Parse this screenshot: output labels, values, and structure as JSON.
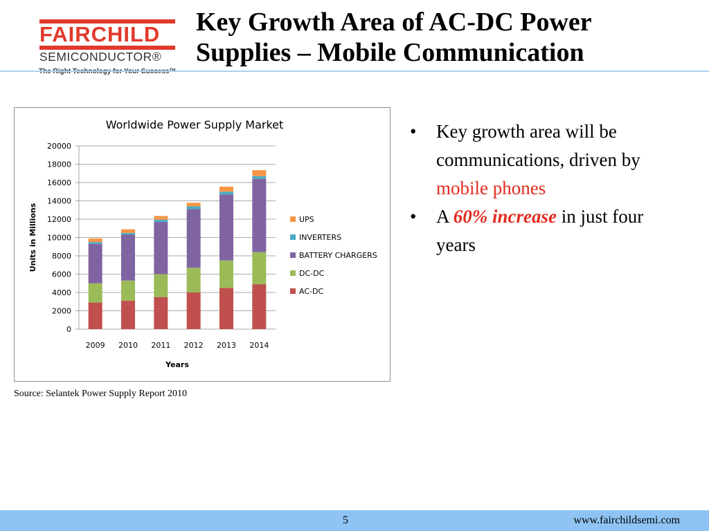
{
  "logo": {
    "brand": "FAIRCHILD",
    "sub": "SEMICONDUCTOR®",
    "tagline": "The Right Technology for Your Success™"
  },
  "title_line1": "Key Growth Area of AC-DC Power",
  "title_line2": "Supplies – Mobile Communication",
  "colors": {
    "brand_red": "#e03a2a",
    "accent_blue": "#8ec3f3",
    "highlight_red": "#e32b1f"
  },
  "bullets": [
    {
      "marker": "•",
      "text_before": "Key growth area will be communications, driven by ",
      "highlight": "mobile phones",
      "text_after": ""
    },
    {
      "marker": "•",
      "text_before": "A ",
      "highlight": "60% increase",
      "text_after": " in just four years"
    }
  ],
  "source": "Source:  Selantek Power Supply Report 2010",
  "footer": {
    "page": "5",
    "website": "www.fairchildsemi.com"
  },
  "chart_data": {
    "type": "bar",
    "stacked": true,
    "title": "Worldwide Power Supply Market",
    "xlabel": "Years",
    "ylabel": "Units in Millions",
    "categories": [
      "2009",
      "2010",
      "2011",
      "2012",
      "2013",
      "2014"
    ],
    "ylim": [
      0,
      20000
    ],
    "yticks": [
      "0",
      "2000",
      "4000",
      "6000",
      "8000",
      "10000",
      "12000",
      "14000",
      "16000",
      "18000",
      "20000"
    ],
    "grid": true,
    "legend_position": "right",
    "series": [
      {
        "name": "AC-DC",
        "color": "#c0504d",
        "values": [
          2900,
          3100,
          3500,
          4000,
          4500,
          4900
        ]
      },
      {
        "name": "DC-DC",
        "color": "#9bbb59",
        "values": [
          2100,
          2200,
          2500,
          2700,
          3000,
          3500
        ]
      },
      {
        "name": "BATTERY CHARGERS",
        "color": "#8064a2",
        "values": [
          4300,
          5000,
          5700,
          6400,
          7200,
          8000
        ]
      },
      {
        "name": "INVERTERS",
        "color": "#4bacc6",
        "values": [
          200,
          200,
          250,
          300,
          300,
          300
        ]
      },
      {
        "name": "UPS",
        "color": "#f79646",
        "values": [
          400,
          400,
          400,
          400,
          550,
          650
        ]
      }
    ]
  }
}
